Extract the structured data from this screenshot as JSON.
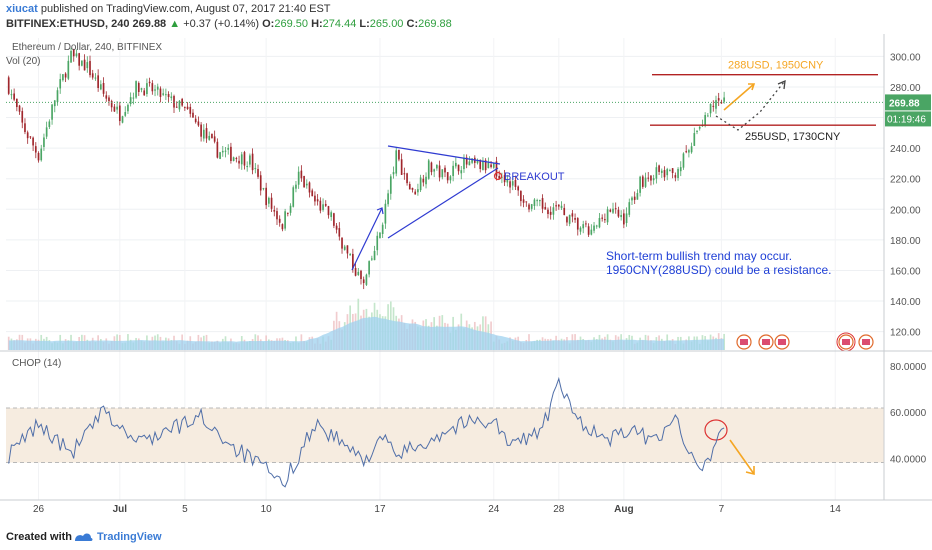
{
  "header": {
    "user": "xiucat",
    "published_text": "published on TradingView.com, August 07, 2017 21:40 EST",
    "symbol": "BITFINEX:ETHUSD, 240",
    "last": "269.88",
    "change": "+0.37 (+0.14%)",
    "o_label": "O:",
    "o": "269.50",
    "h_label": "H:",
    "h": "274.44",
    "l_label": "L:",
    "l": "265.00",
    "c_label": "C:",
    "c": "269.88"
  },
  "footer": {
    "created_with": "Created with",
    "brand": "TradingView"
  },
  "colors": {
    "up": "#4aa564",
    "down": "#a0262c",
    "volume": "#9fd1ef",
    "resistance_line": "#b22222",
    "triangle": "#2f3bd1",
    "annotation_orange": "#f5a623",
    "note_blue": "#1f3fd6"
  },
  "chart_data": [
    {
      "type": "candlestick",
      "title": "Ethereum / Dollar, 240, BITFINEX",
      "indicator_label": "Vol (20)",
      "y_ticks": [
        120,
        140,
        160,
        180,
        200,
        220,
        240,
        260,
        280,
        300
      ],
      "ylim": [
        108,
        312
      ],
      "x_ticks": [
        "26",
        "Jul",
        "5",
        "10",
        "17",
        "24",
        "28",
        "Aug",
        "7",
        "14"
      ],
      "last_price_label": "269.88",
      "countdown_label": "01:19:46",
      "series": [
        {
          "name": "ETHUSD",
          "anchors": [
            {
              "x": "2017-06-24",
              "close": 285
            },
            {
              "x": "2017-06-25",
              "close": 255
            },
            {
              "x": "2017-06-26",
              "close": 235
            },
            {
              "x": "2017-06-27",
              "close": 272
            },
            {
              "x": "2017-06-28",
              "close": 300
            },
            {
              "x": "2017-06-29",
              "close": 293
            },
            {
              "x": "2017-06-30",
              "close": 275
            },
            {
              "x": "2017-07-01",
              "close": 262
            },
            {
              "x": "2017-07-02",
              "close": 280
            },
            {
              "x": "2017-07-03",
              "close": 278
            },
            {
              "x": "2017-07-05",
              "close": 265
            },
            {
              "x": "2017-07-07",
              "close": 238
            },
            {
              "x": "2017-07-09",
              "close": 232
            },
            {
              "x": "2017-07-10",
              "close": 207
            },
            {
              "x": "2017-07-11",
              "close": 190
            },
            {
              "x": "2017-07-12",
              "close": 222
            },
            {
              "x": "2017-07-13",
              "close": 205
            },
            {
              "x": "2017-07-14",
              "close": 195
            },
            {
              "x": "2017-07-15",
              "close": 170
            },
            {
              "x": "2017-07-16",
              "close": 150
            },
            {
              "x": "2017-07-17",
              "close": 185
            },
            {
              "x": "2017-07-18",
              "close": 235
            },
            {
              "x": "2017-07-19",
              "close": 210
            },
            {
              "x": "2017-07-20",
              "close": 228
            },
            {
              "x": "2017-07-21",
              "close": 222
            },
            {
              "x": "2017-07-22",
              "close": 230
            },
            {
              "x": "2017-07-24",
              "close": 227
            },
            {
              "x": "2017-07-25",
              "close": 218
            },
            {
              "x": "2017-07-26",
              "close": 203
            },
            {
              "x": "2017-07-28",
              "close": 200
            },
            {
              "x": "2017-07-29",
              "close": 190
            },
            {
              "x": "2017-07-30",
              "close": 184
            },
            {
              "x": "2017-07-31",
              "close": 200
            },
            {
              "x": "2017-08-01",
              "close": 194
            },
            {
              "x": "2017-08-02",
              "close": 218
            },
            {
              "x": "2017-08-03",
              "close": 224
            },
            {
              "x": "2017-08-04",
              "close": 222
            },
            {
              "x": "2017-08-05",
              "close": 238
            },
            {
              "x": "2017-08-06",
              "close": 262
            },
            {
              "x": "2017-08-07",
              "close": 270
            }
          ]
        }
      ],
      "annotations": [
        {
          "text": "288USD, 1950CNY",
          "value": 288
        },
        {
          "text": "255USD, 1730CNY",
          "value": 255
        },
        {
          "text": "BREAKOUT"
        },
        {
          "text": "Short-term bullish trend may occur."
        },
        {
          "text": "1950CNY(288USD) could be a resistance."
        }
      ]
    },
    {
      "type": "line",
      "title": "CHOP (14)",
      "y_ticks": [
        "40.0000",
        "60.0000",
        "80.0000"
      ],
      "ylim": [
        22,
        86
      ],
      "band": [
        38.2,
        61.8
      ],
      "series": [
        {
          "name": "CHOP (14)",
          "anchors": [
            {
              "x": "2017-06-24",
              "y": 40
            },
            {
              "x": "2017-06-26",
              "y": 55
            },
            {
              "x": "2017-06-28",
              "y": 42
            },
            {
              "x": "2017-06-30",
              "y": 60
            },
            {
              "x": "2017-07-02",
              "y": 47
            },
            {
              "x": "2017-07-04",
              "y": 52
            },
            {
              "x": "2017-07-06",
              "y": 58
            },
            {
              "x": "2017-07-08",
              "y": 45
            },
            {
              "x": "2017-07-10",
              "y": 35
            },
            {
              "x": "2017-07-11",
              "y": 28
            },
            {
              "x": "2017-07-13",
              "y": 55
            },
            {
              "x": "2017-07-15",
              "y": 45
            },
            {
              "x": "2017-07-16",
              "y": 38
            },
            {
              "x": "2017-07-17",
              "y": 50
            },
            {
              "x": "2017-07-18",
              "y": 41
            },
            {
              "x": "2017-07-20",
              "y": 48
            },
            {
              "x": "2017-07-22",
              "y": 55
            },
            {
              "x": "2017-07-24",
              "y": 57
            },
            {
              "x": "2017-07-25",
              "y": 45
            },
            {
              "x": "2017-07-27",
              "y": 53
            },
            {
              "x": "2017-07-28",
              "y": 72
            },
            {
              "x": "2017-07-29",
              "y": 58
            },
            {
              "x": "2017-07-31",
              "y": 47
            },
            {
              "x": "2017-08-01",
              "y": 52
            },
            {
              "x": "2017-08-03",
              "y": 48
            },
            {
              "x": "2017-08-04",
              "y": 58
            },
            {
              "x": "2017-08-05",
              "y": 45
            },
            {
              "x": "2017-08-06",
              "y": 36
            },
            {
              "x": "2017-08-07",
              "y": 53
            }
          ]
        }
      ]
    }
  ]
}
